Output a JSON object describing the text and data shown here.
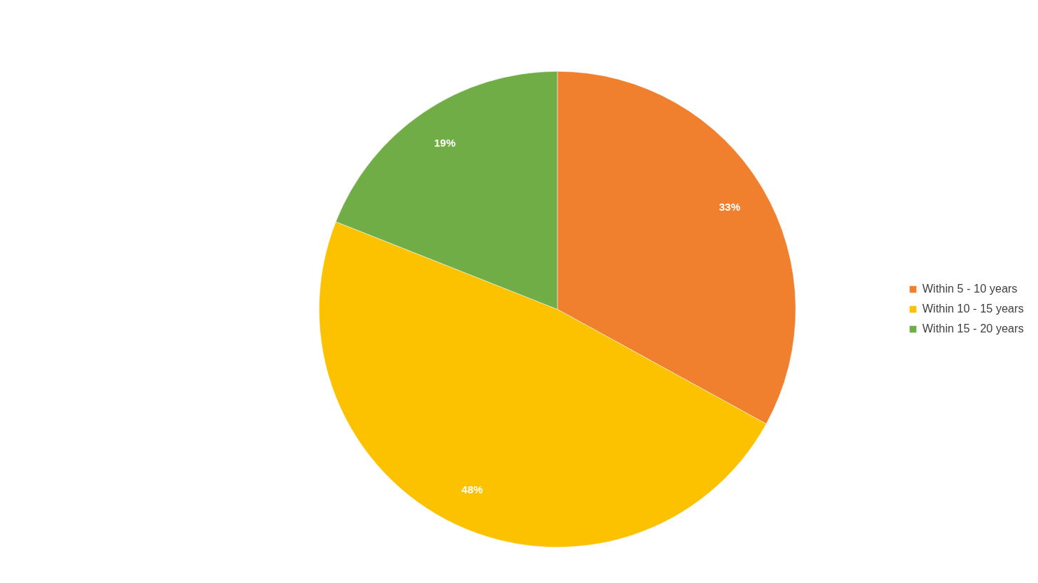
{
  "chart_data": {
    "type": "pie",
    "categories": [
      "Within 5 - 10 years",
      "Within 10 - 15 years",
      "Within 15 - 20 years"
    ],
    "values": [
      33,
      48,
      19
    ],
    "colors": [
      "#f07f2e",
      "#fcc200",
      "#70ad47"
    ],
    "value_labels": [
      "33%",
      "48%",
      "19%"
    ],
    "legend": "right"
  }
}
